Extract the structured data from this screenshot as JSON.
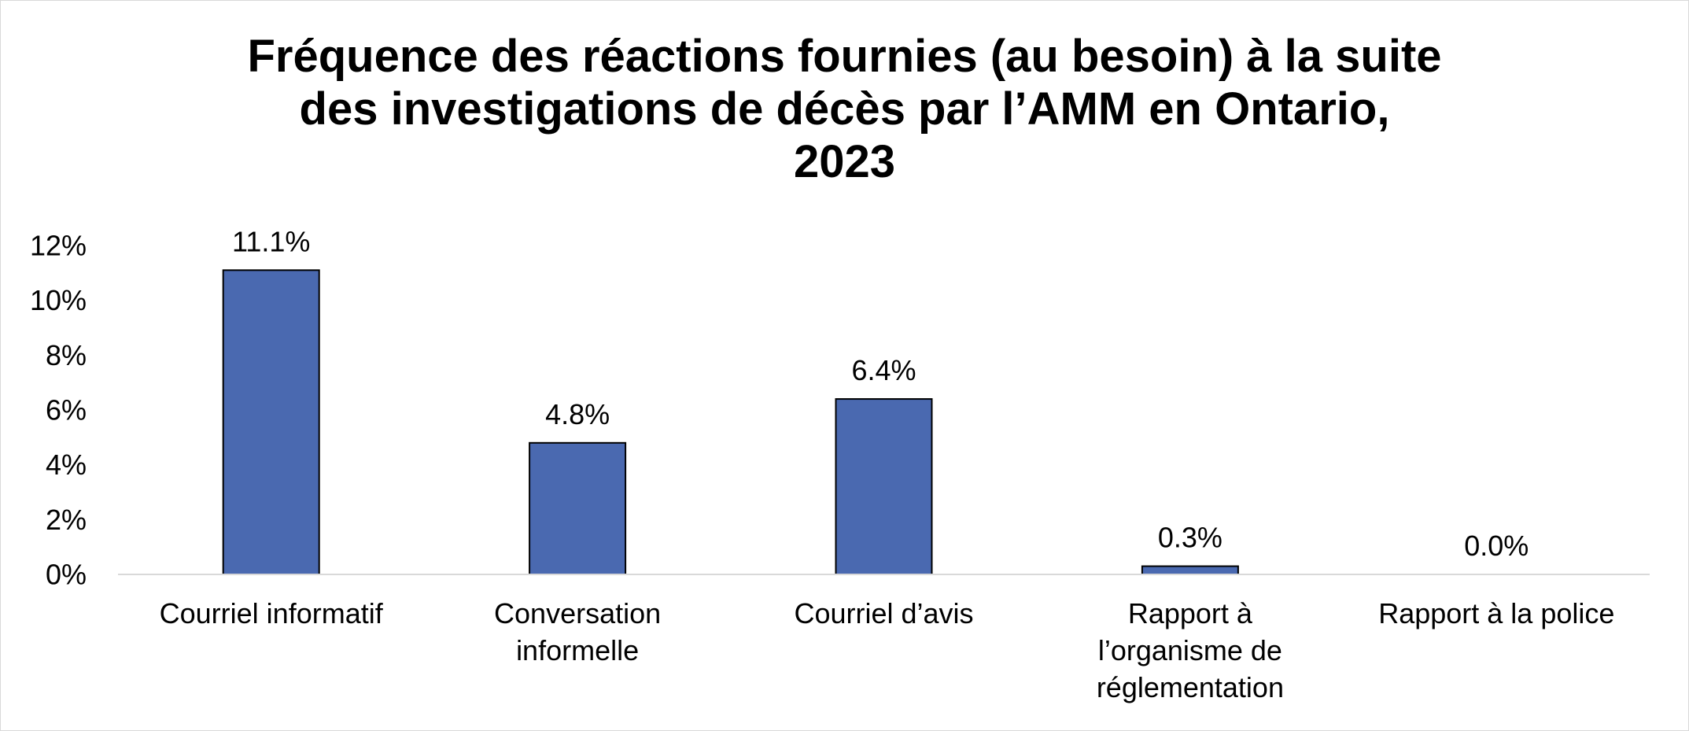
{
  "chart_data": {
    "type": "bar",
    "title_lines": [
      "Fréquence des réactions fournies (au besoin) à la suite",
      "des investigations de décès par l’AMM en Ontario,",
      "2023"
    ],
    "categories": [
      [
        "Courriel informatif"
      ],
      [
        "Conversation",
        "informelle"
      ],
      [
        "Courriel d’avis"
      ],
      [
        "Rapport à",
        "l’organisme de",
        "réglementation"
      ],
      [
        "Rapport à la police"
      ]
    ],
    "values": [
      11.1,
      4.8,
      6.4,
      0.3,
      0.0
    ],
    "data_labels": [
      "11.1%",
      "4.8%",
      "6.4%",
      "0.3%",
      "0.0%"
    ],
    "y_ticks": [
      0,
      2,
      4,
      6,
      8,
      10,
      12
    ],
    "y_tick_labels": [
      "0%",
      "2%",
      "4%",
      "6%",
      "8%",
      "10%",
      "12%"
    ],
    "ylim": [
      0,
      12
    ],
    "bar_color": "#4a69b0",
    "bar_border_color": "#000000",
    "grid": false,
    "legend": "none"
  }
}
